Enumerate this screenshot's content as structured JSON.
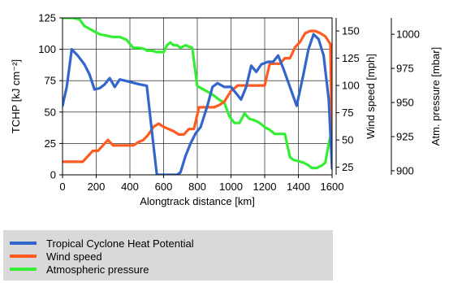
{
  "chart_data": {
    "type": "line",
    "title": "",
    "xlabel": "Alongtrack distance [km]",
    "xlim": [
      0,
      1600
    ],
    "x_ticks": [
      "0",
      "200",
      "400",
      "600",
      "800",
      "1000",
      "1200",
      "1400",
      "1600"
    ],
    "grid": true,
    "legend_position": "bottom",
    "axes": [
      {
        "id": "tchp",
        "label": "TCHP [kJ cm⁻²]",
        "range": [
          0,
          125
        ],
        "ticks": [
          "0",
          "25",
          "50",
          "75",
          "100",
          "125"
        ]
      },
      {
        "id": "wind",
        "label": "Wind speed [mph]",
        "range": [
          18,
          162
        ],
        "ticks": [
          "25",
          "50",
          "75",
          "100",
          "125",
          "150"
        ]
      },
      {
        "id": "pressure",
        "label": "Atm. pressure [mbar]",
        "range": [
          897,
          1012
        ],
        "ticks": [
          "900",
          "925",
          "950",
          "975",
          "1000"
        ]
      }
    ],
    "series": [
      {
        "name": "Tropical Cyclone Heat Potential",
        "axis": "tchp",
        "color": "#3366cc",
        "x": [
          0,
          25,
          55,
          90,
          130,
          160,
          190,
          220,
          250,
          280,
          310,
          340,
          370,
          400,
          430,
          460,
          500,
          530,
          560,
          600,
          640,
          680,
          700,
          730,
          760,
          790,
          820,
          860,
          890,
          920,
          960,
          1000,
          1030,
          1060,
          1090,
          1120,
          1150,
          1180,
          1220,
          1250,
          1280,
          1310,
          1350,
          1390,
          1430,
          1460,
          1490,
          1520,
          1550,
          1580,
          1600
        ],
        "values": [
          55,
          70,
          100,
          95,
          88,
          80,
          68,
          69,
          72,
          77,
          70,
          76,
          75,
          74,
          73,
          72,
          71,
          35,
          0,
          0,
          0,
          0,
          2,
          15,
          25,
          33,
          38,
          55,
          70,
          73,
          70,
          70,
          65,
          60,
          70,
          87,
          82,
          88,
          90,
          90,
          95,
          85,
          70,
          55,
          80,
          100,
          112,
          108,
          95,
          60,
          5
        ]
      },
      {
        "name": "Wind speed",
        "axis": "wind",
        "color": "#ff5a1f",
        "x": [
          0,
          30,
          60,
          90,
          120,
          150,
          180,
          210,
          240,
          270,
          300,
          330,
          360,
          390,
          420,
          450,
          480,
          510,
          540,
          570,
          600,
          630,
          660,
          690,
          720,
          750,
          780,
          810,
          840,
          870,
          900,
          930,
          960,
          1000,
          1040,
          1080,
          1120,
          1160,
          1200,
          1230,
          1260,
          1290,
          1320,
          1350,
          1380,
          1410,
          1440,
          1470,
          1500,
          1530,
          1560,
          1590,
          1600
        ],
        "values": [
          30,
          30,
          30,
          30,
          30,
          35,
          40,
          40,
          45,
          50,
          45,
          45,
          45,
          45,
          45,
          48,
          50,
          55,
          62,
          65,
          62,
          60,
          58,
          55,
          55,
          60,
          60,
          80,
          80,
          80,
          80,
          82,
          85,
          95,
          100,
          100,
          100,
          100,
          100,
          120,
          120,
          120,
          125,
          125,
          135,
          140,
          148,
          150,
          150,
          148,
          145,
          138,
          40
        ]
      },
      {
        "name": "Atmospheric pressure",
        "axis": "pressure",
        "color": "#33ee33",
        "x": [
          0,
          20,
          60,
          100,
          130,
          160,
          190,
          220,
          260,
          300,
          340,
          380,
          420,
          460,
          490,
          500,
          530,
          560,
          600,
          620,
          640,
          660,
          680,
          700,
          730,
          770,
          800,
          830,
          860,
          900,
          930,
          960,
          990,
          1020,
          1050,
          1080,
          1110,
          1140,
          1170,
          1200,
          1230,
          1260,
          1290,
          1320,
          1350,
          1370,
          1400,
          1430,
          1460,
          1480,
          1510,
          1540,
          1560,
          1580,
          1600
        ],
        "values": [
          1012,
          1012,
          1012,
          1011,
          1006,
          1004,
          1002,
          1000,
          999,
          998,
          998,
          996,
          990,
          990,
          989,
          988,
          988,
          987,
          987,
          992,
          994,
          992,
          992,
          990,
          992,
          990,
          962,
          960,
          958,
          955,
          952,
          950,
          940,
          935,
          935,
          942,
          938,
          937,
          935,
          932,
          930,
          927,
          927,
          927,
          910,
          908,
          907,
          906,
          904,
          902,
          902,
          904,
          906,
          920,
          929
        ]
      }
    ]
  }
}
